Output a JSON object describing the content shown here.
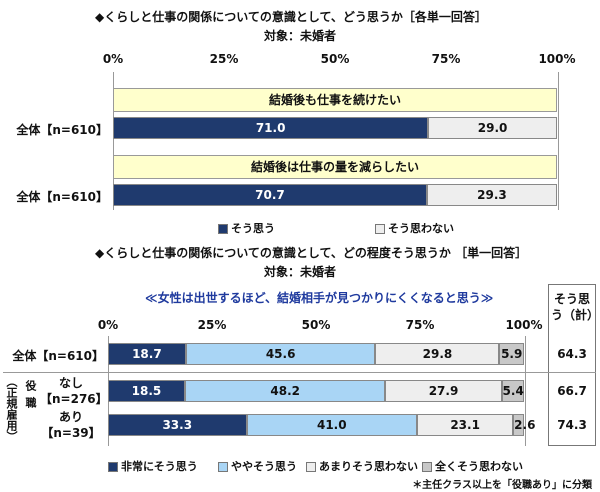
{
  "colors": {
    "navy": "#1f3a6e",
    "light_blue": "#a9d5f5",
    "light_gray": "#eeeeee",
    "gray": "#c8c8c8",
    "banner": "#ffffcc"
  },
  "chart_data": [
    {
      "type": "bar",
      "title": "◆くらしと仕事の関係についての意識として、どう思うか［各単一回答］",
      "subtitle": "対象：未婚者",
      "ticks": [
        "0%",
        "25%",
        "50%",
        "75%",
        "100%"
      ],
      "xlim": [
        0,
        100
      ],
      "legend": [
        "そう思う",
        "そう思わない"
      ],
      "rows": [
        {
          "banner": "結婚後も仕事を続けたい",
          "label": "全体【n=610】",
          "values": [
            71.0,
            29.0
          ],
          "value_labels": [
            "71.0",
            "29.0"
          ]
        },
        {
          "banner": "結婚後は仕事の量を減らしたい",
          "label": "全体【n=610】",
          "values": [
            70.7,
            29.3
          ],
          "value_labels": [
            "70.7",
            "29.3"
          ]
        }
      ]
    },
    {
      "type": "bar",
      "title": "◆くらしと仕事の関係についての意識として、どの程度そう思うか ［単一回答］",
      "subtitle": "対象：未婚者",
      "banner": "≪女性は出世するほど、結婚相手が見つかりにくくなると思う≫",
      "ticks": [
        "0%",
        "25%",
        "50%",
        "75%",
        "100%"
      ],
      "xlim": [
        0,
        100
      ],
      "legend": [
        "非常にそう思う",
        "ややそう思う",
        "あまりそう思わない",
        "全くそう思わない"
      ],
      "total_header": "そう思う（計）",
      "group_label": "（正規雇用）",
      "group_name": "役職",
      "rows": [
        {
          "label": "全体【n=610】",
          "values": [
            18.7,
            45.6,
            29.8,
            5.9
          ],
          "value_labels": [
            "18.7",
            "45.6",
            "29.8",
            "5.9"
          ],
          "total": "64.3"
        },
        {
          "label": "なし",
          "label2": "【n=276】",
          "values": [
            18.5,
            48.2,
            27.9,
            5.4
          ],
          "value_labels": [
            "18.5",
            "48.2",
            "27.9",
            "5.4"
          ],
          "total": "66.7"
        },
        {
          "label": "あり",
          "label2": "【n=39】",
          "values": [
            33.3,
            41.0,
            23.1,
            2.6
          ],
          "value_labels": [
            "33.3",
            "41.0",
            "23.1",
            "2.6"
          ],
          "total": "74.3"
        }
      ],
      "note": "＊主任クラス以上を「役職あり」に分類"
    }
  ]
}
